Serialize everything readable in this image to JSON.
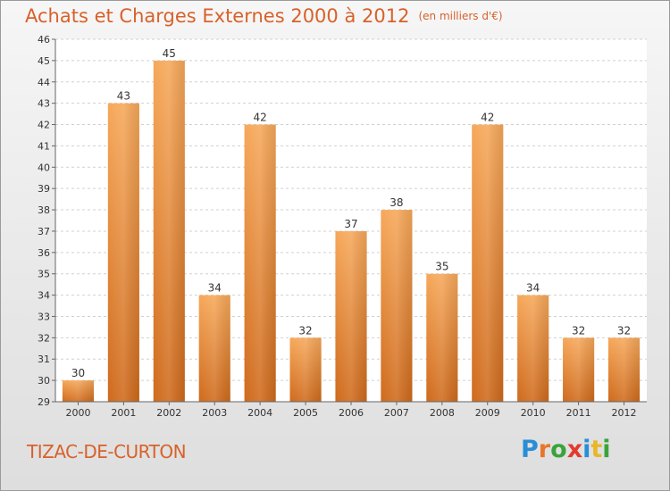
{
  "title": "Achats et Charges Externes 2000 à 2012",
  "subtitle": "(en milliers d'€)",
  "commune": "TIZAC-DE-CURTON",
  "logo": {
    "text": "Proxiti",
    "letters": [
      "P",
      "r",
      "o",
      "x",
      "i",
      "t",
      "i"
    ],
    "colors": [
      "#2a8ed6",
      "#e8762a",
      "#3aa33a",
      "#e23b2e",
      "#2a8ed6",
      "#e8b72a",
      "#3aa33a"
    ]
  },
  "chart_data": {
    "type": "bar",
    "categories": [
      "2000",
      "2001",
      "2002",
      "2003",
      "2004",
      "2005",
      "2006",
      "2007",
      "2008",
      "2009",
      "2010",
      "2011",
      "2012"
    ],
    "values": [
      30,
      43,
      45,
      34,
      42,
      32,
      37,
      38,
      35,
      42,
      34,
      32,
      32
    ],
    "title": "Achats et Charges Externes 2000 à 2012",
    "subtitle": "(en milliers d'€)",
    "ylim": [
      29,
      46
    ],
    "yticks": [
      29,
      30,
      31,
      32,
      33,
      34,
      35,
      36,
      37,
      38,
      39,
      40,
      41,
      42,
      43,
      44,
      45,
      46
    ],
    "grid": true,
    "bar_color": "#e8863a"
  }
}
